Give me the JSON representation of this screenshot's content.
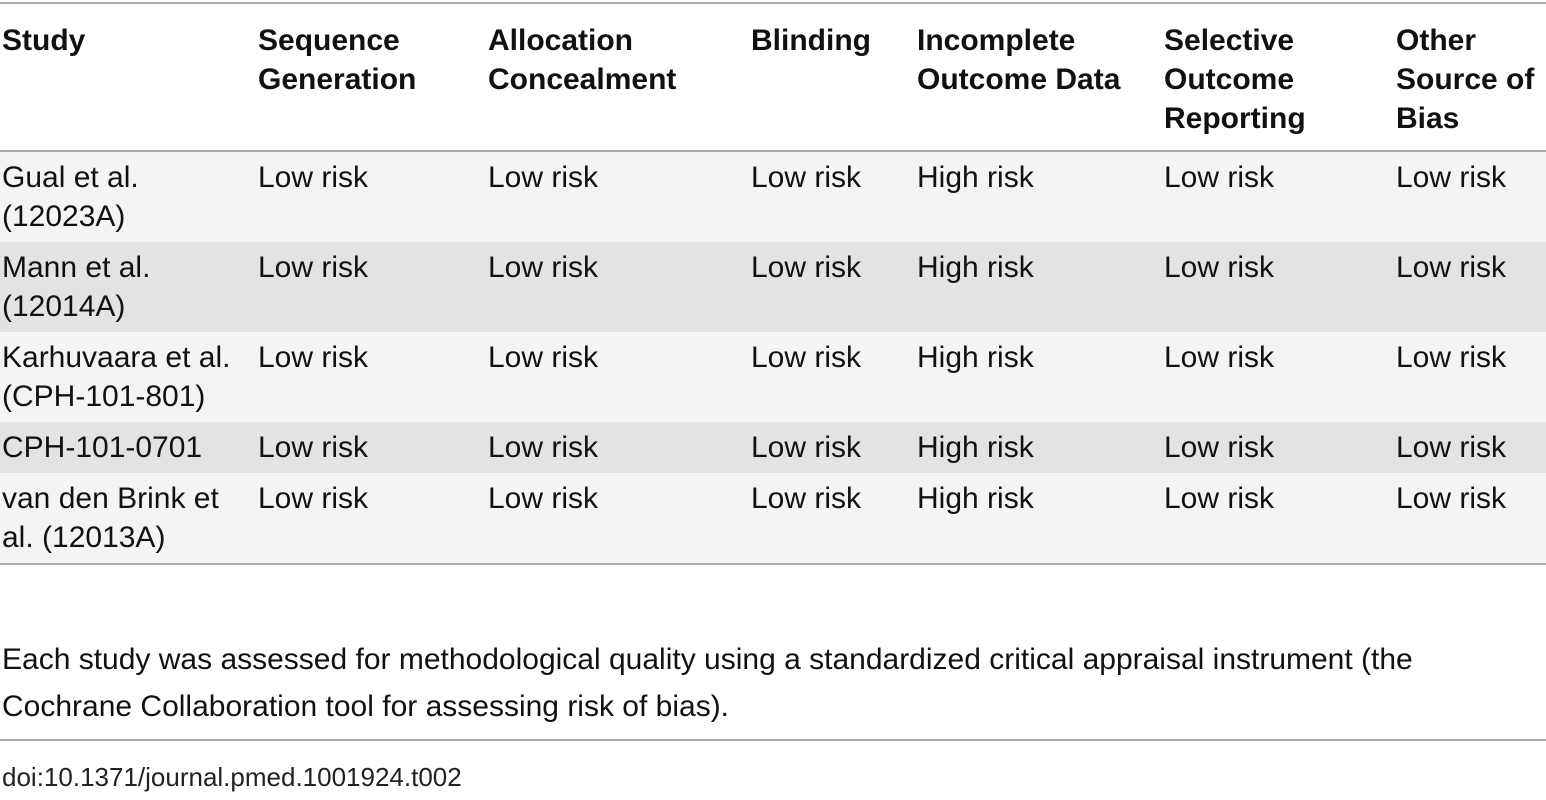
{
  "table": {
    "headers": [
      "Study",
      "Sequence Generation",
      "Allocation Concealment",
      "Blinding",
      "Incomplete Outcome Data",
      "Selective Outcome Reporting",
      "Other Source of Bias"
    ],
    "rows": [
      [
        "Gual et al. (12023A)",
        "Low risk",
        "Low risk",
        "Low risk",
        "High risk",
        "Low risk",
        "Low risk"
      ],
      [
        "Mann et al. (12014A)",
        "Low risk",
        "Low risk",
        "Low risk",
        "High risk",
        "Low risk",
        "Low risk"
      ],
      [
        "Karhuvaara et al. (CPH-101-801)",
        "Low risk",
        "Low risk",
        "Low risk",
        "High risk",
        "Low risk",
        "Low risk"
      ],
      [
        "CPH-101-0701",
        "Low risk",
        "Low risk",
        "Low risk",
        "High risk",
        "Low risk",
        "Low risk"
      ],
      [
        "van den Brink et al. (12013A)",
        "Low risk",
        "Low risk",
        "Low risk",
        "High risk",
        "Low risk",
        "Low risk"
      ]
    ]
  },
  "footnote": "Each study was assessed for methodological quality using a standardized critical appraisal instrument (the Cochrane Collaboration tool for assessing risk of bias).",
  "doi": "doi:10.1371/journal.pmed.1001924.t002",
  "colors": {
    "row_light": "#f4f4f4",
    "row_dark": "#e2e3e4",
    "rule": "#a9a9a9"
  }
}
